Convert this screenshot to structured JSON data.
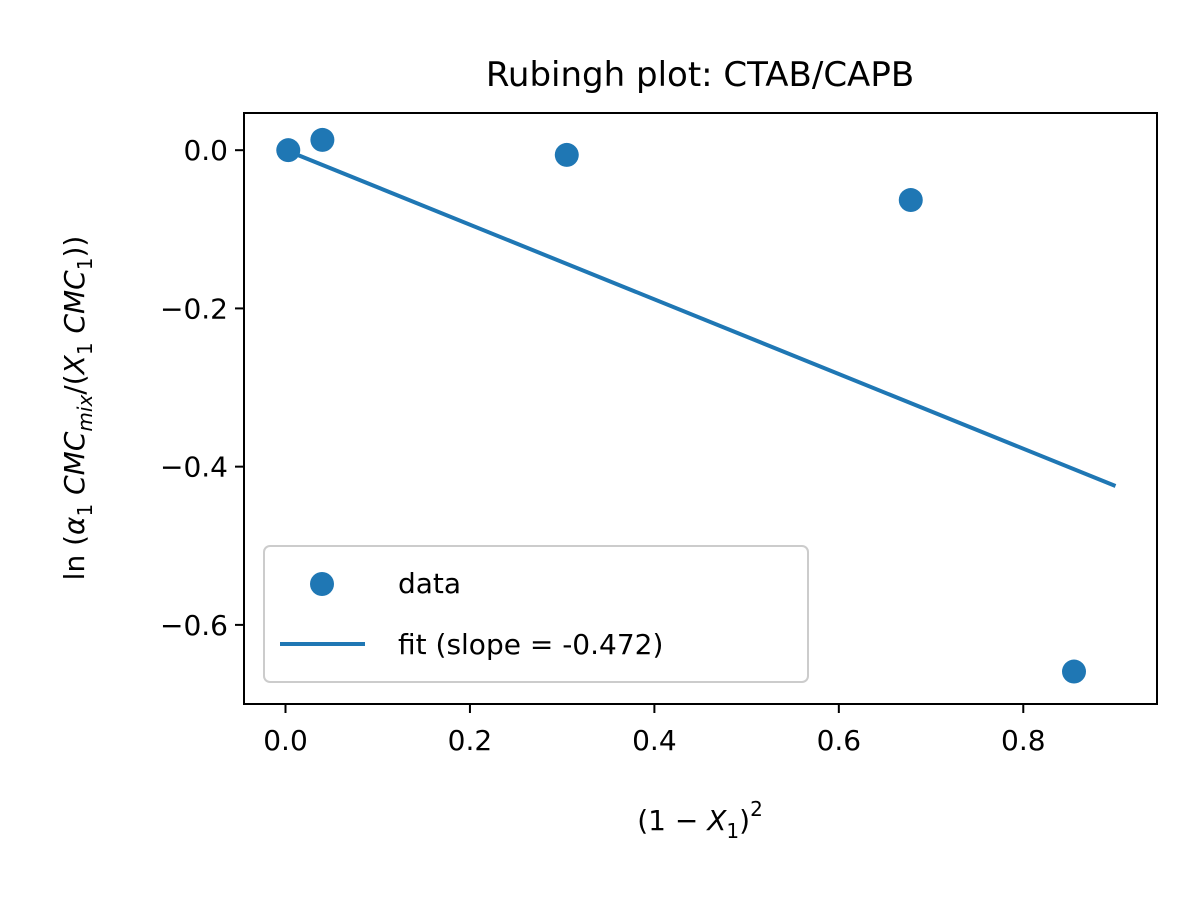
{
  "chart_data": {
    "type": "scatter",
    "title": "Rubingh plot: CTAB/CAPB",
    "xlabel": "(1 − X₁)²",
    "ylabel": "ln (α₁ CMC_mix/(X₁ CMC₁))",
    "xlim": [
      -0.045,
      0.945
    ],
    "ylim": [
      -0.7,
      0.047
    ],
    "x_ticks": [
      0.0,
      0.2,
      0.4,
      0.6,
      0.8
    ],
    "x_tick_labels": [
      "0.0",
      "0.2",
      "0.4",
      "0.6",
      "0.8"
    ],
    "y_ticks": [
      0.0,
      -0.2,
      -0.4,
      -0.6
    ],
    "y_tick_labels": [
      "0.0",
      "−0.2",
      "−0.4",
      "−0.6"
    ],
    "grid": false,
    "legend_position": "lower-left",
    "series": [
      {
        "name": "data",
        "kind": "scatter",
        "color": "#1f77b4",
        "x": [
          0.003,
          0.04,
          0.305,
          0.678,
          0.855
        ],
        "y": [
          0.0,
          0.013,
          -0.006,
          -0.063,
          -0.659
        ]
      },
      {
        "name": "fit (slope = -0.472)",
        "kind": "line",
        "color": "#1f77b4",
        "x": [
          0.01,
          0.9
        ],
        "y": [
          -0.0045,
          -0.4245
        ]
      }
    ]
  }
}
